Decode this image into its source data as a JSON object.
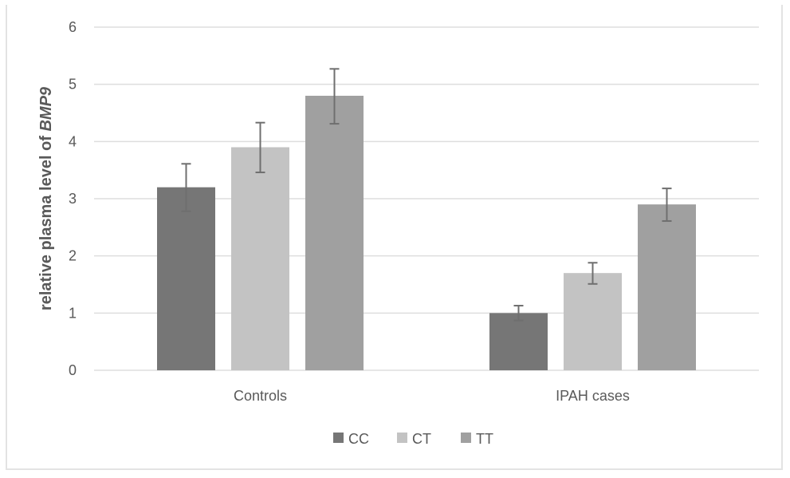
{
  "chart_data": {
    "type": "bar",
    "title": "",
    "xlabel": "",
    "ylabel": "relative plasma level of ",
    "ylabel_italic": "BMP9",
    "categories": [
      "Controls",
      "IPAH cases"
    ],
    "ylim": [
      0,
      6
    ],
    "yticks": [
      "0",
      "1",
      "2",
      "3",
      "4",
      "5",
      "6"
    ],
    "grid": true,
    "legend_position": "bottom",
    "series": [
      {
        "name": "CC",
        "color": "#767676",
        "values": [
          3.2,
          1.0
        ],
        "error_low": [
          2.78,
          0.87
        ],
        "error_high": [
          3.61,
          1.13
        ]
      },
      {
        "name": "CT",
        "color": "#c3c3c3",
        "values": [
          3.9,
          1.7
        ],
        "error_low": [
          3.46,
          1.51
        ],
        "error_high": [
          4.33,
          1.88
        ]
      },
      {
        "name": "TT",
        "color": "#a0a0a0",
        "values": [
          4.8,
          2.9
        ],
        "error_low": [
          4.31,
          2.61
        ],
        "error_high": [
          5.27,
          3.18
        ]
      }
    ]
  }
}
